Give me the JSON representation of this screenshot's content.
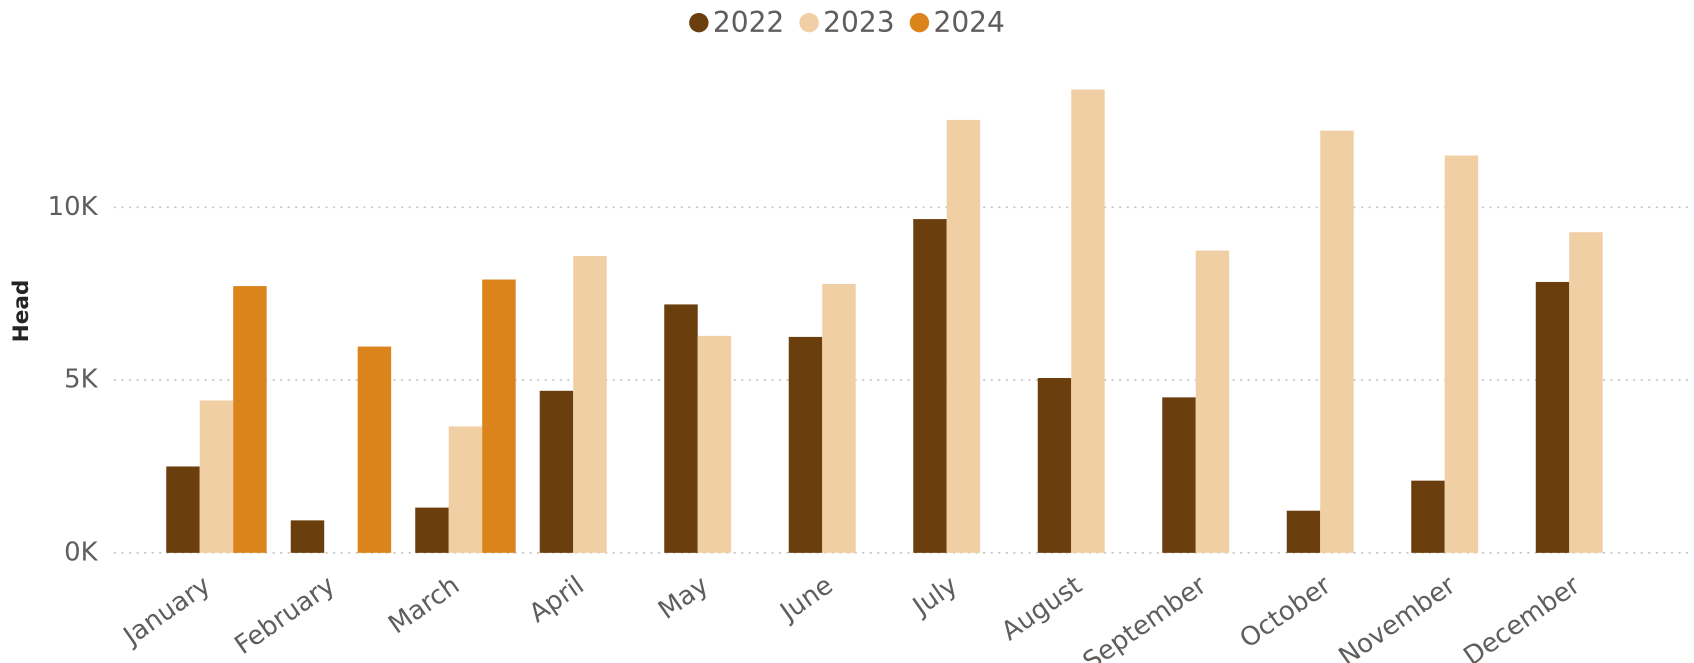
{
  "chart_data": {
    "type": "bar",
    "y_label": "Head",
    "categories": [
      "January",
      "February",
      "March",
      "April",
      "May",
      "June",
      "July",
      "August",
      "September",
      "October",
      "November",
      "December"
    ],
    "series": [
      {
        "name": "2022",
        "color": "#6b3f0d",
        "values": [
          2500,
          940,
          1310,
          4690,
          7190,
          6250,
          9660,
          5060,
          4500,
          1220,
          2090,
          7840
        ]
      },
      {
        "name": "2023",
        "color": "#f1cfa5",
        "values": [
          4410,
          null,
          3660,
          8590,
          6280,
          7780,
          12530,
          13410,
          8750,
          12220,
          11500,
          9280
        ]
      },
      {
        "name": "2024",
        "color": "#dc841c",
        "values": [
          7720,
          5970,
          7910,
          null,
          null,
          null,
          null,
          null,
          null,
          null,
          null,
          null
        ]
      }
    ],
    "ylim": [
      0,
      14000
    ],
    "yticks": [
      {
        "value": 0,
        "label": "0K"
      },
      {
        "value": 5000,
        "label": "5K"
      },
      {
        "value": 10000,
        "label": "10K"
      }
    ],
    "grid": true,
    "legend": "top"
  }
}
